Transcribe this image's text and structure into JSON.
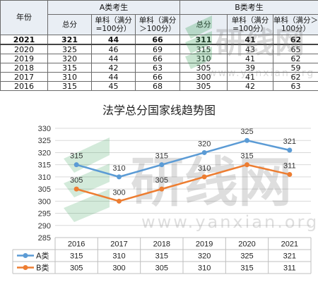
{
  "table": {
    "year_header": "年份",
    "groupA_header": "A类考生",
    "groupB_header": "B类考生",
    "sub_headers": [
      "总分",
      "单科（满分=100分）",
      "单科（满分＞100分）",
      "总分",
      "单科（满分=100分）",
      "单科（满分＞100分）"
    ],
    "rows": [
      {
        "year": "2021",
        "cells": [
          "321",
          "44",
          "66",
          "311",
          "41",
          "62"
        ],
        "bold": true
      },
      {
        "year": "2020",
        "cells": [
          "325",
          "46",
          "69",
          "315",
          "43",
          "65"
        ],
        "bold": false
      },
      {
        "year": "2019",
        "cells": [
          "320",
          "44",
          "66",
          "310",
          "41",
          "62"
        ],
        "bold": false
      },
      {
        "year": "2018",
        "cells": [
          "315",
          "42",
          "63",
          "305",
          "39",
          "59"
        ],
        "bold": false
      },
      {
        "year": "2017",
        "cells": [
          "310",
          "44",
          "66",
          "300",
          "41",
          "62"
        ],
        "bold": false
      },
      {
        "year": "2016",
        "cells": [
          "315",
          "45",
          "68",
          "305",
          "42",
          "63"
        ],
        "bold": false
      }
    ]
  },
  "watermark": {
    "logo_text": "研线网",
    "url_text": "www.yanxian.org"
  },
  "chart_data": {
    "type": "line",
    "title": "法学总分国家线趋势图",
    "categories": [
      "2016",
      "2017",
      "2018",
      "2019",
      "2020",
      "2021"
    ],
    "series": [
      {
        "name": "A类",
        "color": "#5b9bd5",
        "values": [
          315,
          310,
          315,
          320,
          325,
          321
        ]
      },
      {
        "name": "B类",
        "color": "#ed7d31",
        "values": [
          305,
          300,
          305,
          310,
          315,
          311
        ]
      }
    ],
    "ylim": [
      285,
      330
    ],
    "yticks": [
      285,
      290,
      295,
      300,
      305,
      310,
      315,
      320,
      325,
      330
    ],
    "grid": true,
    "legend": "data-table-below"
  }
}
